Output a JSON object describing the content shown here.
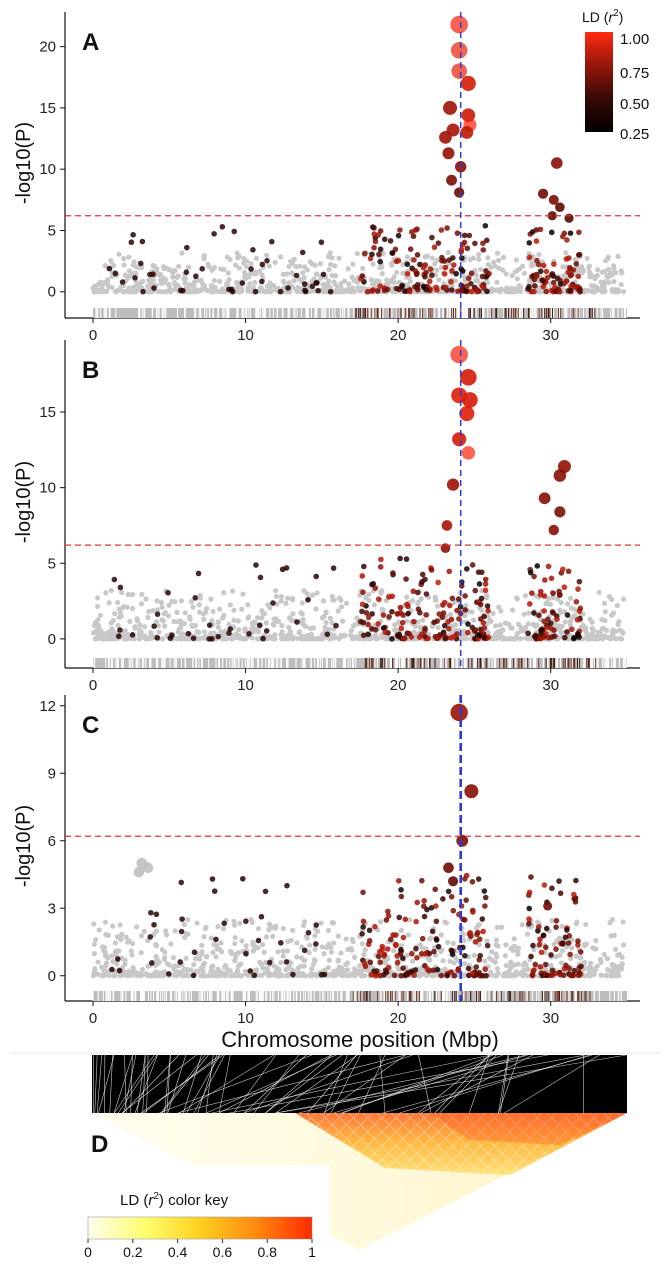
{
  "chart_data": [
    {
      "type": "scatter",
      "panel_label": "A",
      "ylabel": "-log10(P)",
      "xlim": [
        0,
        35
      ],
      "ylim": [
        -1,
        22.5
      ],
      "yticks": [
        0,
        5,
        10,
        15,
        20
      ],
      "xticks": [
        0,
        10,
        20,
        30
      ],
      "threshold": 6.2,
      "lead_position": 24.1,
      "highlight_points": [
        {
          "x": 24.0,
          "y": 21.8,
          "r2": 0.95
        },
        {
          "x": 24.0,
          "y": 19.7,
          "r2": 0.9
        },
        {
          "x": 24.0,
          "y": 18.0,
          "r2": 0.88
        },
        {
          "x": 24.6,
          "y": 17.0,
          "r2": 0.8
        },
        {
          "x": 23.4,
          "y": 15.0,
          "r2": 0.55
        },
        {
          "x": 23.6,
          "y": 13.2,
          "r2": 0.6
        },
        {
          "x": 23.1,
          "y": 12.6,
          "r2": 0.55
        },
        {
          "x": 24.6,
          "y": 14.4,
          "r2": 0.75
        },
        {
          "x": 24.7,
          "y": 13.6,
          "r2": 1.0
        },
        {
          "x": 24.5,
          "y": 13.0,
          "r2": 0.7
        },
        {
          "x": 23.3,
          "y": 11.3,
          "r2": 0.5
        },
        {
          "x": 24.1,
          "y": 10.2,
          "r2": 0.45
        },
        {
          "x": 23.5,
          "y": 9.1,
          "r2": 0.4
        },
        {
          "x": 24.0,
          "y": 8.1,
          "r2": 0.35
        },
        {
          "x": 30.4,
          "y": 10.5,
          "r2": 0.45
        },
        {
          "x": 29.5,
          "y": 8.0,
          "r2": 0.35
        },
        {
          "x": 30.2,
          "y": 7.5,
          "r2": 0.4
        },
        {
          "x": 30.6,
          "y": 6.9,
          "r2": 0.3
        },
        {
          "x": 30.1,
          "y": 6.2,
          "r2": 0.3
        },
        {
          "x": 31.2,
          "y": 6.0,
          "r2": 0.25
        }
      ]
    },
    {
      "type": "scatter",
      "panel_label": "B",
      "ylabel": "-log10(P)",
      "xlim": [
        0,
        35
      ],
      "ylim": [
        -1,
        19.5
      ],
      "yticks": [
        0,
        5,
        10,
        15
      ],
      "xticks": [
        0,
        10,
        20,
        30
      ],
      "threshold": 6.2,
      "lead_position": 24.1,
      "highlight_points": [
        {
          "x": 24.0,
          "y": 18.8,
          "r2": 0.95
        },
        {
          "x": 24.6,
          "y": 17.3,
          "r2": 0.8
        },
        {
          "x": 24.0,
          "y": 16.1,
          "r2": 0.85
        },
        {
          "x": 24.7,
          "y": 15.8,
          "r2": 0.8
        },
        {
          "x": 24.5,
          "y": 14.9,
          "r2": 0.85
        },
        {
          "x": 24.0,
          "y": 13.2,
          "r2": 0.8
        },
        {
          "x": 24.6,
          "y": 12.3,
          "r2": 1.0
        },
        {
          "x": 23.6,
          "y": 10.2,
          "r2": 0.55
        },
        {
          "x": 23.2,
          "y": 7.5,
          "r2": 0.6
        },
        {
          "x": 23.1,
          "y": 6.0,
          "r2": 0.5
        },
        {
          "x": 30.9,
          "y": 11.4,
          "r2": 0.5
        },
        {
          "x": 30.6,
          "y": 10.8,
          "r2": 0.45
        },
        {
          "x": 29.6,
          "y": 9.3,
          "r2": 0.45
        },
        {
          "x": 30.6,
          "y": 8.4,
          "r2": 0.4
        },
        {
          "x": 30.2,
          "y": 7.2,
          "r2": 0.45
        }
      ]
    },
    {
      "type": "scatter",
      "panel_label": "C",
      "ylabel": "-log10(P)",
      "xlabel": "Chromosome position (Mbp)",
      "xlim": [
        0,
        35
      ],
      "ylim": [
        -0.5,
        12.3
      ],
      "yticks": [
        0,
        3,
        6,
        9,
        12
      ],
      "xticks": [
        0,
        10,
        20,
        30
      ],
      "threshold": 6.2,
      "lead_position": 24.1,
      "highlight_points": [
        {
          "x": 24.0,
          "y": 11.7,
          "r2": 0.55
        },
        {
          "x": 24.8,
          "y": 8.2,
          "r2": 0.45
        },
        {
          "x": 24.2,
          "y": 6.0,
          "r2": 0.4
        },
        {
          "x": 23.3,
          "y": 4.8,
          "r2": 0.35
        },
        {
          "x": 23.6,
          "y": 4.2,
          "r2": 0.3
        },
        {
          "x": 3.2,
          "y": 5.0,
          "r2": 0.0
        },
        {
          "x": 3.6,
          "y": 4.8,
          "r2": 0.0
        },
        {
          "x": 3.0,
          "y": 4.6,
          "r2": 0.0
        },
        {
          "x": 29.8,
          "y": 3.1,
          "r2": 0.35
        }
      ]
    }
  ],
  "panels": [
    {
      "label": "A"
    },
    {
      "label": "B"
    },
    {
      "label": "C"
    }
  ],
  "ld_legend": {
    "title_prefix": "LD (",
    "title_var": "r",
    "title_sup": "2",
    "title_suffix": ")",
    "ticks": [
      "1.00",
      "0.75",
      "0.50",
      "0.25"
    ],
    "colors": [
      "#ff2200",
      "#000000"
    ]
  },
  "heatmap_panel": {
    "label": "D",
    "key_title_prefix": "LD (",
    "key_title_var": "r",
    "key_title_sup": "2",
    "key_title_suffix": ") color key",
    "key_ticks": [
      "0",
      "0.2",
      "0.4",
      "0.6",
      "0.8",
      "1"
    ],
    "key_colors": [
      "#fffef0",
      "#ffff70",
      "#ffd020",
      "#ff8a10",
      "#ff2a00"
    ]
  },
  "colors": {
    "background_points": "#c8c8c8",
    "threshold_line": "#e8322c",
    "lead_line": "#2b3bd8"
  }
}
